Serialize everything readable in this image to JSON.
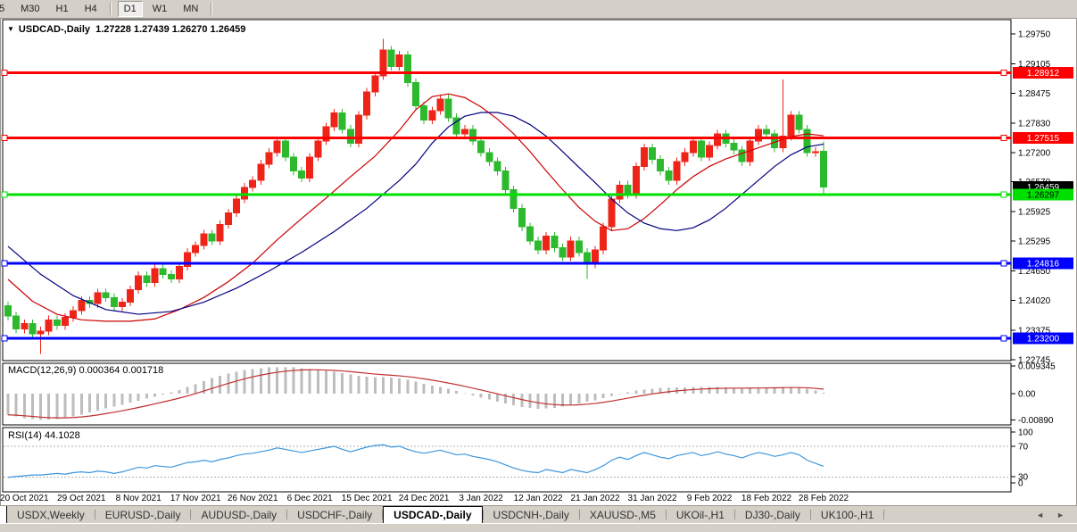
{
  "toolbar": {
    "timeframes": [
      {
        "label": "5",
        "active": false,
        "partial": true
      },
      {
        "label": "M30",
        "active": false
      },
      {
        "label": "H1",
        "active": false
      },
      {
        "label": "H4",
        "active": false
      },
      {
        "sep": true
      },
      {
        "label": "D1",
        "active": true
      },
      {
        "label": "W1",
        "active": false
      },
      {
        "label": "MN",
        "active": false
      },
      {
        "sep": true
      }
    ]
  },
  "chart": {
    "title": "USDCAD-,Daily  1.27228 1.27439 1.26270 1.26459",
    "dropdown_icon": "▼"
  },
  "macd_panel": {
    "label": "MACD(12,26,9) 0.000364 0.001718",
    "axis": [
      "0.009345",
      "0.00",
      "-0.00890"
    ]
  },
  "rsi_panel": {
    "label": "RSI(14) 44.1028",
    "axis": [
      "100",
      "70",
      "30",
      "0"
    ]
  },
  "tabs": {
    "items": [
      "USDX,Weekly",
      "EURUSD-,Daily",
      "AUDUSD-,Daily",
      "USDCHF-,Daily",
      "USDCAD-,Daily",
      "USDCNH-,Daily",
      "XAUUSD-,M5",
      "UKOil-,H1",
      "DJ30-,Daily",
      "UK100-,H1"
    ],
    "active_index": 4,
    "left_arrow": "◄",
    "right_arrow": "►"
  },
  "chart_data": {
    "type": "candlestick",
    "symbol": "USDCAD-,Daily",
    "last_ohlc": {
      "open": 1.27228,
      "high": 1.27439,
      "low": 1.2627,
      "close": 1.26459
    },
    "visible_price_range": [
      1.2272,
      1.2979
    ],
    "price_axis_ticks": [
      "1.29750",
      "1.29105",
      "1.28475",
      "1.27830",
      "1.27200",
      "1.26570",
      "1.25925",
      "1.25295",
      "1.24650",
      "1.24020",
      "1.23375",
      "1.22745"
    ],
    "x_tick_labels": [
      "20 Oct 2021",
      "29 Oct 2021",
      "8 Nov 2021",
      "17 Nov 2021",
      "26 Nov 2021",
      "6 Dec 2021",
      "15 Dec 2021",
      "24 Dec 2021",
      "3 Jan 2022",
      "12 Jan 2022",
      "21 Jan 2022",
      "31 Jan 2022",
      "9 Feb 2022",
      "18 Feb 2022",
      "28 Feb 2022"
    ],
    "x_tick_indices": [
      2,
      9,
      16,
      23,
      30,
      37,
      44,
      51,
      58,
      65,
      72,
      79,
      86,
      93,
      100
    ],
    "bar_count": 101,
    "first_open": 1.239,
    "closes": [
      1.2368,
      1.234,
      1.2352,
      1.233,
      1.2336,
      1.236,
      1.2348,
      1.2365,
      1.238,
      1.2402,
      1.2395,
      1.2418,
      1.2408,
      1.2388,
      1.2398,
      1.2425,
      1.2455,
      1.244,
      1.247,
      1.2458,
      1.2448,
      1.2475,
      1.2505,
      1.252,
      1.2545,
      1.253,
      1.2565,
      1.259,
      1.262,
      1.2645,
      1.266,
      1.2695,
      1.272,
      1.2745,
      1.271,
      1.268,
      1.2665,
      1.271,
      1.2745,
      1.2775,
      1.2805,
      1.277,
      1.274,
      1.28,
      1.285,
      1.2885,
      1.294,
      1.2905,
      1.293,
      1.287,
      1.282,
      1.279,
      1.281,
      1.2835,
      1.2795,
      1.276,
      1.277,
      1.2745,
      1.272,
      1.27,
      1.268,
      1.264,
      1.26,
      1.256,
      1.253,
      1.251,
      1.254,
      1.2515,
      1.2495,
      1.253,
      1.2505,
      1.248,
      1.251,
      1.256,
      1.262,
      1.265,
      1.263,
      1.269,
      1.273,
      1.2705,
      1.268,
      1.266,
      1.27,
      1.272,
      1.2745,
      1.271,
      1.2735,
      1.276,
      1.274,
      1.2725,
      1.27,
      1.2745,
      1.277,
      1.276,
      1.273,
      1.2755,
      1.28,
      1.277,
      1.272,
      1.2722,
      1.26459
    ],
    "default_wick": 0.0009,
    "wick_overrides": {
      "4": {
        "low": 1.2287
      },
      "46": {
        "high": 1.2964
      },
      "71": {
        "low": 1.2448
      },
      "95": {
        "high": 1.2877
      },
      "100": {
        "open": 1.27228,
        "high": 1.27439,
        "low": 1.2627,
        "close": 1.26459
      }
    },
    "horizontal_lines": [
      {
        "price": 1.28912,
        "label": "1.28912",
        "color": "#ff0000",
        "text_color": "#ffffff"
      },
      {
        "price": 1.27515,
        "label": "1.27515",
        "color": "#ff0000",
        "text_color": "#ffffff"
      },
      {
        "price": 1.24816,
        "label": "1.24816",
        "color": "#0000ff",
        "text_color": "#ffffff"
      },
      {
        "price": 1.232,
        "label": "1.23200",
        "color": "#0000ff",
        "text_color": "#ffffff"
      },
      {
        "price": 1.26297,
        "label": "1.26297",
        "color": "#00e000",
        "text_color": "#000000"
      }
    ],
    "current_price": {
      "value": 1.26459,
      "label": "1.26459",
      "bg": "#000000",
      "text_color": "#ffffff"
    },
    "ma_fast_points": [
      [
        0,
        1.2447
      ],
      [
        3,
        1.24
      ],
      [
        6,
        1.2372
      ],
      [
        9,
        1.236
      ],
      [
        12,
        1.2357
      ],
      [
        15,
        1.2357
      ],
      [
        18,
        1.2362
      ],
      [
        21,
        1.2382
      ],
      [
        24,
        1.2408
      ],
      [
        27,
        1.2442
      ],
      [
        30,
        1.2482
      ],
      [
        33,
        1.2532
      ],
      [
        36,
        1.2578
      ],
      [
        39,
        1.2622
      ],
      [
        42,
        1.2668
      ],
      [
        45,
        1.2712
      ],
      [
        48,
        1.2768
      ],
      [
        50,
        1.2812
      ],
      [
        52,
        1.284
      ],
      [
        54,
        1.2846
      ],
      [
        56,
        1.2838
      ],
      [
        58,
        1.2818
      ],
      [
        60,
        1.2792
      ],
      [
        62,
        1.276
      ],
      [
        64,
        1.2722
      ],
      [
        66,
        1.268
      ],
      [
        68,
        1.264
      ],
      [
        70,
        1.2602
      ],
      [
        72,
        1.2572
      ],
      [
        74,
        1.2552
      ],
      [
        76,
        1.2556
      ],
      [
        78,
        1.2578
      ],
      [
        80,
        1.2608
      ],
      [
        82,
        1.264
      ],
      [
        84,
        1.2668
      ],
      [
        86,
        1.269
      ],
      [
        88,
        1.2706
      ],
      [
        90,
        1.2718
      ],
      [
        92,
        1.273
      ],
      [
        94,
        1.2742
      ],
      [
        96,
        1.2754
      ],
      [
        98,
        1.276
      ],
      [
        100,
        1.2756
      ]
    ],
    "ma_slow_points": [
      [
        0,
        1.2518
      ],
      [
        4,
        1.2458
      ],
      [
        8,
        1.2412
      ],
      [
        12,
        1.2382
      ],
      [
        16,
        1.2372
      ],
      [
        20,
        1.2378
      ],
      [
        24,
        1.2398
      ],
      [
        28,
        1.2428
      ],
      [
        32,
        1.2465
      ],
      [
        36,
        1.2505
      ],
      [
        40,
        1.255
      ],
      [
        44,
        1.26
      ],
      [
        48,
        1.266
      ],
      [
        50,
        1.2695
      ],
      [
        52,
        1.274
      ],
      [
        54,
        1.2775
      ],
      [
        56,
        1.2798
      ],
      [
        58,
        1.2806
      ],
      [
        60,
        1.2806
      ],
      [
        62,
        1.2798
      ],
      [
        64,
        1.278
      ],
      [
        66,
        1.2755
      ],
      [
        68,
        1.2722
      ],
      [
        70,
        1.2688
      ],
      [
        72,
        1.2655
      ],
      [
        74,
        1.262
      ],
      [
        76,
        1.259
      ],
      [
        78,
        1.2568
      ],
      [
        80,
        1.2556
      ],
      [
        82,
        1.2552
      ],
      [
        84,
        1.2558
      ],
      [
        86,
        1.2575
      ],
      [
        88,
        1.26
      ],
      [
        90,
        1.263
      ],
      [
        92,
        1.266
      ],
      [
        94,
        1.269
      ],
      [
        96,
        1.2715
      ],
      [
        98,
        1.2732
      ],
      [
        100,
        1.2738
      ]
    ],
    "macd": {
      "params": "12,26,9",
      "value": 0.000364,
      "signal_value": 0.001718,
      "signal_period": 9,
      "histogram": [
        -0.0072,
        -0.0078,
        -0.0083,
        -0.0086,
        -0.0089,
        -0.0088,
        -0.0086,
        -0.0082,
        -0.0077,
        -0.0071,
        -0.0064,
        -0.0057,
        -0.005,
        -0.0044,
        -0.0038,
        -0.0031,
        -0.0024,
        -0.0017,
        -0.001,
        -0.0003,
        0.0004,
        0.0012,
        0.0022,
        0.0032,
        0.0043,
        0.0053,
        0.0061,
        0.0068,
        0.0075,
        0.008,
        0.0084,
        0.0087,
        0.0089,
        0.009,
        0.009,
        0.0089,
        0.0087,
        0.0084,
        0.008,
        0.0077,
        0.0074,
        0.007,
        0.0065,
        0.0061,
        0.0058,
        0.0056,
        0.0056,
        0.0055,
        0.0052,
        0.0047,
        0.0041,
        0.0034,
        0.0028,
        0.0022,
        0.0016,
        0.0009,
        0.0002,
        -0.0006,
        -0.0013,
        -0.002,
        -0.0027,
        -0.0034,
        -0.004,
        -0.0045,
        -0.0049,
        -0.0051,
        -0.005,
        -0.0048,
        -0.0044,
        -0.0039,
        -0.0034,
        -0.0028,
        -0.0022,
        -0.0015,
        -0.0008,
        -0.0001,
        0.0005,
        0.001,
        0.0014,
        0.0017,
        0.0019,
        0.002,
        0.0021,
        0.0021,
        0.0022,
        0.0022,
        0.0022,
        0.0022,
        0.0021,
        0.002,
        0.0019,
        0.0019,
        0.002,
        0.0021,
        0.0021,
        0.0022,
        0.0022,
        0.0021,
        0.0017,
        0.001,
        0.000364
      ]
    },
    "rsi": {
      "period": 14,
      "current": 44.1028,
      "levels": [
        70,
        30
      ],
      "values": [
        30,
        31,
        32,
        33,
        33,
        34,
        35,
        34,
        36,
        37,
        36,
        38,
        37,
        35,
        37,
        40,
        43,
        42,
        45,
        44,
        43,
        46,
        49,
        50,
        52,
        50,
        53,
        55,
        58,
        60,
        61,
        63,
        65,
        68,
        66,
        64,
        62,
        64,
        66,
        68,
        70,
        66,
        63,
        66,
        69,
        71,
        72,
        69,
        70,
        66,
        63,
        61,
        63,
        65,
        62,
        59,
        60,
        57,
        55,
        53,
        50,
        46,
        42,
        39,
        37,
        36,
        40,
        38,
        36,
        40,
        38,
        36,
        40,
        45,
        52,
        56,
        53,
        58,
        62,
        59,
        56,
        54,
        58,
        60,
        62,
        58,
        60,
        63,
        60,
        58,
        55,
        59,
        62,
        60,
        57,
        59,
        62,
        59,
        52,
        48,
        44.1028
      ]
    },
    "colors": {
      "bull": "#ee2419",
      "bear": "#2db92d",
      "ma_fast": "#cc0000",
      "ma_slow": "#000080",
      "macd_bar": "#bdbdbd",
      "macd_signal": "#c03030",
      "rsi_line": "#3d96dd",
      "panel_border": "#000000",
      "axis_text": "#000000"
    }
  }
}
